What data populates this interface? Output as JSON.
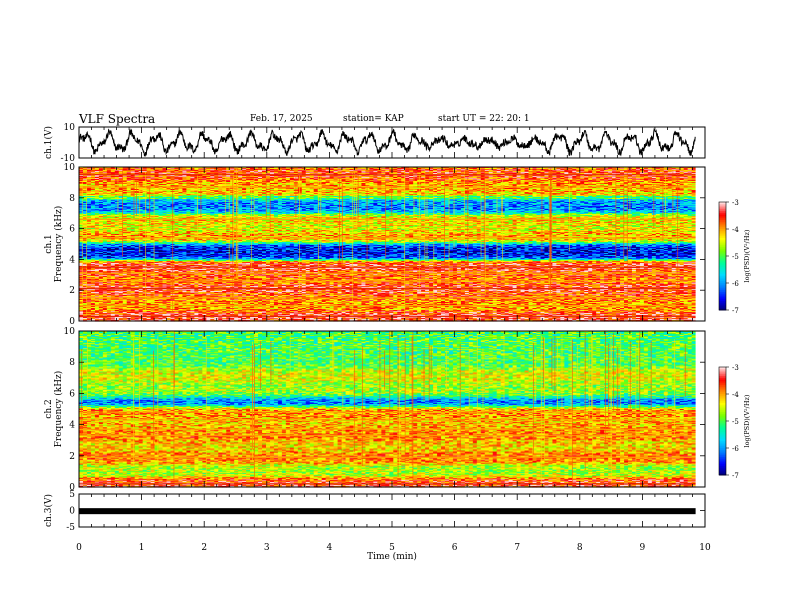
{
  "header": {
    "title": "VLF Spectra",
    "date": "Feb. 17, 2025",
    "station": "station= KAP",
    "start": "start  UT =   22: 20: 1"
  },
  "chart_data": {
    "type": "heatmap",
    "x_axis": {
      "label": "Time  (min)",
      "range": [
        0,
        10
      ],
      "ticks": [
        "0",
        "1",
        "2",
        "3",
        "4",
        "5",
        "6",
        "7",
        "8",
        "9",
        "10"
      ]
    },
    "panels": [
      {
        "id": "ch1-waveform",
        "type": "line",
        "ylabel": "ch.1(V)",
        "ylim": [
          -10,
          10
        ],
        "yticks": [
          "10",
          "-10"
        ]
      },
      {
        "id": "ch1-spectrogram",
        "type": "heatmap",
        "ylabel": "ch.1\nFrequency  (kHz)",
        "ylim": [
          0,
          10
        ],
        "yticks": [
          "0",
          "2",
          "4",
          "6",
          "8",
          "10"
        ],
        "colorbar": {
          "label": "log(PSD)(V²/Hz)",
          "range": [
            -7,
            -3
          ],
          "ticks": [
            "-3",
            "-4",
            "-5",
            "-6",
            "-7"
          ]
        },
        "bands": [
          {
            "f": 0.3,
            "level": -3.3
          },
          {
            "f": 1.0,
            "level": -4.0
          },
          {
            "f": 1.5,
            "level": -3.7
          },
          {
            "f": 2.1,
            "level": -3.3
          },
          {
            "f": 2.6,
            "level": -3.8
          },
          {
            "f": 3.1,
            "level": -3.6
          },
          {
            "f": 3.5,
            "level": -3.3
          },
          {
            "f": 4.4,
            "level": -6.5
          },
          {
            "f": 4.7,
            "level": -6.6
          },
          {
            "f": 5.4,
            "level": -4.0
          },
          {
            "f": 6.3,
            "level": -4.4
          },
          {
            "f": 6.6,
            "level": -4.1
          },
          {
            "f": 7.3,
            "level": -6.1
          },
          {
            "f": 8.7,
            "level": -4.0
          },
          {
            "f": 9.5,
            "level": -3.5
          }
        ]
      },
      {
        "id": "ch2-spectrogram",
        "type": "heatmap",
        "ylabel": "ch.2\nFrequency  (kHz)",
        "ylim": [
          0,
          10
        ],
        "yticks": [
          "0",
          "2",
          "4",
          "6",
          "8",
          "10"
        ],
        "colorbar": {
          "label": "log(PSD)(V²/Hz)",
          "range": [
            -7,
            -3
          ],
          "ticks": [
            "-3",
            "-4",
            "-5",
            "-6",
            "-7"
          ]
        },
        "bands": [
          {
            "f": 0.2,
            "level": -3.4
          },
          {
            "f": 1.0,
            "level": -4.6
          },
          {
            "f": 1.9,
            "level": -3.8
          },
          {
            "f": 2.6,
            "level": -4.2
          },
          {
            "f": 3.3,
            "level": -3.8
          },
          {
            "f": 3.7,
            "level": -4.0
          },
          {
            "f": 4.3,
            "level": -4.1
          },
          {
            "f": 4.8,
            "level": -3.8
          },
          {
            "f": 5.5,
            "level": -6.3
          },
          {
            "f": 6.0,
            "level": -4.6
          },
          {
            "f": 7.2,
            "level": -4.4
          },
          {
            "f": 8.0,
            "level": -5.0
          }
        ]
      },
      {
        "id": "ch3-waveform",
        "type": "line",
        "ylabel": "ch.3(V)",
        "ylim": [
          -5,
          5
        ],
        "yticks": [
          "5",
          "0",
          "-5"
        ],
        "level": -0.2
      }
    ],
    "data_end_min": 9.85,
    "colormap": [
      "#000070",
      "#0000ff",
      "#00a0ff",
      "#00ffff",
      "#00ff80",
      "#80ff00",
      "#ffff00",
      "#ff8000",
      "#ff0000",
      "#ffffff"
    ]
  }
}
